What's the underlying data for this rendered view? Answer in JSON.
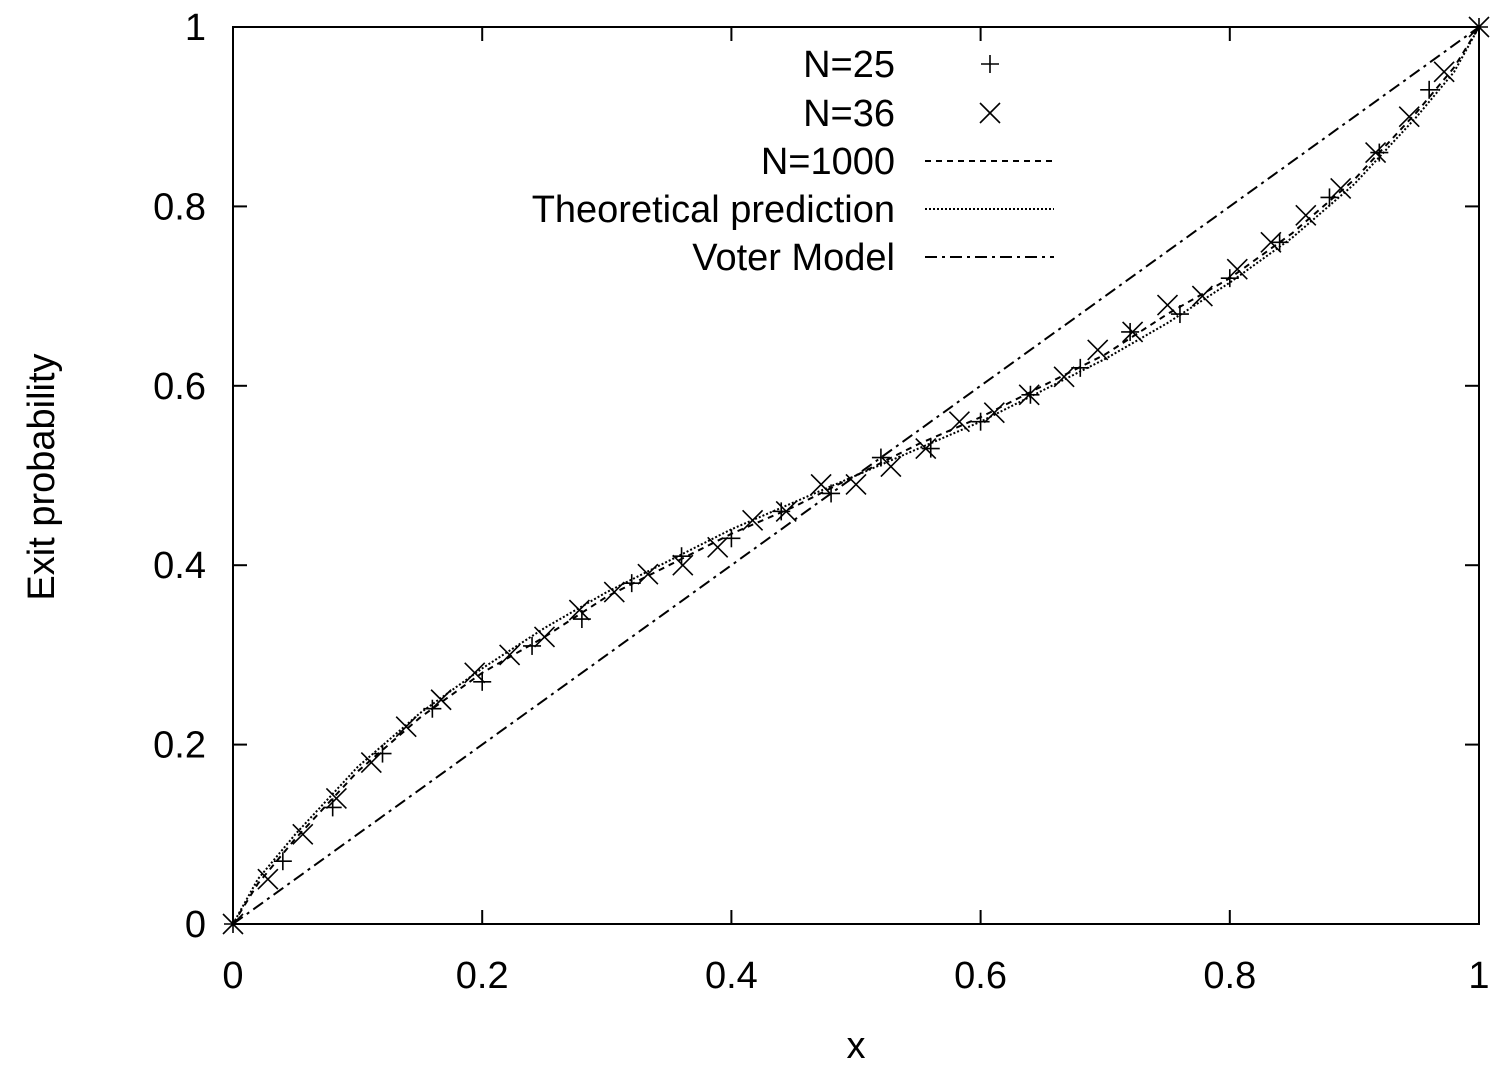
{
  "chart_data": {
    "type": "line",
    "title": "",
    "xlabel": "x",
    "ylabel": "Exit probability",
    "xlim": [
      0,
      1
    ],
    "ylim": [
      0,
      1
    ],
    "xticks": [
      "0",
      "0.2",
      "0.4",
      "0.6",
      "0.8",
      "1"
    ],
    "yticks": [
      "0",
      "0.2",
      "0.4",
      "0.6",
      "0.8",
      "1"
    ],
    "grid": false,
    "legend_position": "top-center",
    "series": [
      {
        "name": "N=25",
        "style": "points-plus",
        "x": [
          0,
          0.04,
          0.08,
          0.12,
          0.16,
          0.2,
          0.24,
          0.28,
          0.32,
          0.36,
          0.4,
          0.44,
          0.48,
          0.52,
          0.56,
          0.6,
          0.64,
          0.68,
          0.72,
          0.76,
          0.8,
          0.84,
          0.88,
          0.92,
          0.96,
          1
        ],
        "y": [
          0,
          0.07,
          0.13,
          0.19,
          0.24,
          0.27,
          0.31,
          0.34,
          0.38,
          0.41,
          0.43,
          0.46,
          0.48,
          0.52,
          0.53,
          0.56,
          0.59,
          0.62,
          0.66,
          0.68,
          0.72,
          0.76,
          0.81,
          0.86,
          0.93,
          1
        ]
      },
      {
        "name": "N=36",
        "style": "points-cross",
        "x": [
          0,
          0.028,
          0.056,
          0.083,
          0.111,
          0.139,
          0.167,
          0.194,
          0.222,
          0.25,
          0.278,
          0.306,
          0.333,
          0.361,
          0.389,
          0.417,
          0.444,
          0.472,
          0.5,
          0.528,
          0.556,
          0.583,
          0.611,
          0.639,
          0.667,
          0.694,
          0.722,
          0.75,
          0.778,
          0.806,
          0.833,
          0.861,
          0.889,
          0.917,
          0.944,
          0.972,
          1
        ],
        "y": [
          0,
          0.05,
          0.1,
          0.14,
          0.18,
          0.22,
          0.25,
          0.28,
          0.3,
          0.32,
          0.35,
          0.37,
          0.39,
          0.4,
          0.42,
          0.45,
          0.46,
          0.49,
          0.49,
          0.51,
          0.53,
          0.56,
          0.57,
          0.59,
          0.61,
          0.64,
          0.66,
          0.69,
          0.7,
          0.73,
          0.76,
          0.79,
          0.82,
          0.86,
          0.9,
          0.95,
          1
        ]
      },
      {
        "name": "N=1000",
        "style": "dashed",
        "x": [
          0,
          0.02,
          0.05,
          0.1,
          0.15,
          0.2,
          0.25,
          0.3,
          0.35,
          0.4,
          0.45,
          0.5,
          0.55,
          0.6,
          0.65,
          0.7,
          0.75,
          0.8,
          0.85,
          0.9,
          0.95,
          0.98,
          1
        ],
        "y": [
          0,
          0.045,
          0.095,
          0.17,
          0.23,
          0.28,
          0.32,
          0.365,
          0.4,
          0.435,
          0.465,
          0.5,
          0.535,
          0.565,
          0.6,
          0.635,
          0.68,
          0.72,
          0.77,
          0.83,
          0.905,
          0.955,
          1
        ]
      },
      {
        "name": "Theoretical prediction",
        "style": "dotted",
        "x": [
          0,
          0.02,
          0.05,
          0.1,
          0.15,
          0.2,
          0.25,
          0.3,
          0.35,
          0.4,
          0.45,
          0.5,
          0.55,
          0.6,
          0.65,
          0.7,
          0.75,
          0.8,
          0.85,
          0.9,
          0.95,
          0.98,
          1
        ],
        "y": [
          0,
          0.05,
          0.1,
          0.175,
          0.235,
          0.285,
          0.33,
          0.37,
          0.405,
          0.44,
          0.47,
          0.5,
          0.53,
          0.56,
          0.595,
          0.63,
          0.67,
          0.715,
          0.765,
          0.825,
          0.9,
          0.95,
          1
        ]
      },
      {
        "name": "Voter Model",
        "style": "dash-dot",
        "x": [
          0,
          1
        ],
        "y": [
          0,
          1
        ]
      }
    ]
  }
}
